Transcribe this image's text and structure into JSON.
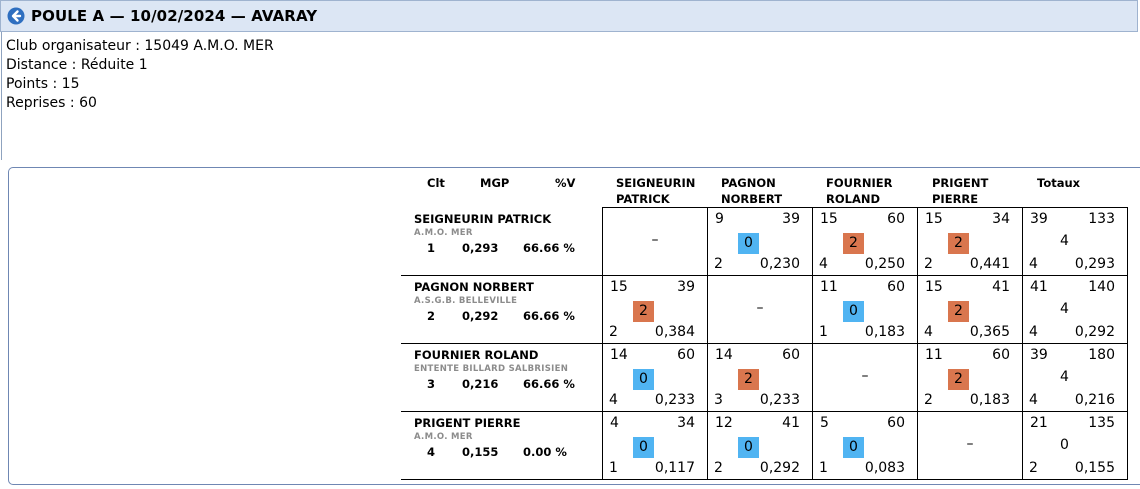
{
  "header": {
    "title": "POULE A — 10/02/2024 — AVARAY",
    "back_icon": "arrow-left-circle-icon"
  },
  "info": {
    "club": "Club organisateur : 15049 A.M.O. MER",
    "distance": "Distance : Réduite 1",
    "points": "Points : 15",
    "reprises": "Reprises : 60"
  },
  "columns": {
    "clt": "Clt",
    "mgp": "MGP",
    "pv": "%V",
    "p1a": "SEIGNEURIN",
    "p1b": "PATRICK",
    "p2a": "PAGNON",
    "p2b": "NORBERT",
    "p3a": "FOURNIER",
    "p3b": "ROLAND",
    "p4a": "PRIGENT",
    "p4b": "PIERRE",
    "totals": "Totaux"
  },
  "colors": {
    "win": "#d9764e",
    "loss": "#50b4f2",
    "header_bg": "#dce6f4"
  },
  "players": [
    {
      "name": "SEIGNEURIN PATRICK",
      "club": "A.M.O. MER",
      "rank": "1",
      "mgp": "0,293",
      "pv": "66.66 %",
      "matches": [
        {
          "self": true,
          "dash": "–"
        },
        {
          "points": "9",
          "reprises": "39",
          "score": "0",
          "result": "loss",
          "serie": "2",
          "moy": "0,230"
        },
        {
          "points": "15",
          "reprises": "60",
          "score": "2",
          "result": "win",
          "serie": "4",
          "moy": "0,250"
        },
        {
          "points": "15",
          "reprises": "34",
          "score": "2",
          "result": "win",
          "serie": "2",
          "moy": "0,441"
        }
      ],
      "totals": {
        "points": "39",
        "reprises": "133",
        "score": "4",
        "serie": "4",
        "moy": "0,293"
      }
    },
    {
      "name": "PAGNON NORBERT",
      "club": "A.S.G.B. BELLEVILLE",
      "rank": "2",
      "mgp": "0,292",
      "pv": "66.66 %",
      "matches": [
        {
          "points": "15",
          "reprises": "39",
          "score": "2",
          "result": "win",
          "serie": "2",
          "moy": "0,384"
        },
        {
          "self": true,
          "dash": "–"
        },
        {
          "points": "11",
          "reprises": "60",
          "score": "0",
          "result": "loss",
          "serie": "1",
          "moy": "0,183"
        },
        {
          "points": "15",
          "reprises": "41",
          "score": "2",
          "result": "win",
          "serie": "4",
          "moy": "0,365"
        }
      ],
      "totals": {
        "points": "41",
        "reprises": "140",
        "score": "4",
        "serie": "4",
        "moy": "0,292"
      }
    },
    {
      "name": "FOURNIER ROLAND",
      "club": "ENTENTE BILLARD SALBRISIEN",
      "rank": "3",
      "mgp": "0,216",
      "pv": "66.66 %",
      "matches": [
        {
          "points": "14",
          "reprises": "60",
          "score": "0",
          "result": "loss",
          "serie": "4",
          "moy": "0,233"
        },
        {
          "points": "14",
          "reprises": "60",
          "score": "2",
          "result": "win",
          "serie": "3",
          "moy": "0,233"
        },
        {
          "self": true,
          "dash": "–"
        },
        {
          "points": "11",
          "reprises": "60",
          "score": "2",
          "result": "win",
          "serie": "2",
          "moy": "0,183"
        }
      ],
      "totals": {
        "points": "39",
        "reprises": "180",
        "score": "4",
        "serie": "4",
        "moy": "0,216"
      }
    },
    {
      "name": "PRIGENT PIERRE",
      "club": "A.M.O. MER",
      "rank": "4",
      "mgp": "0,155",
      "pv": "0.00 %",
      "matches": [
        {
          "points": "4",
          "reprises": "34",
          "score": "0",
          "result": "loss",
          "serie": "1",
          "moy": "0,117"
        },
        {
          "points": "12",
          "reprises": "41",
          "score": "0",
          "result": "loss",
          "serie": "2",
          "moy": "0,292"
        },
        {
          "points": "5",
          "reprises": "60",
          "score": "0",
          "result": "loss",
          "serie": "1",
          "moy": "0,083"
        },
        {
          "self": true,
          "dash": "–"
        }
      ],
      "totals": {
        "points": "21",
        "reprises": "135",
        "score": "0",
        "serie": "2",
        "moy": "0,155"
      }
    }
  ]
}
